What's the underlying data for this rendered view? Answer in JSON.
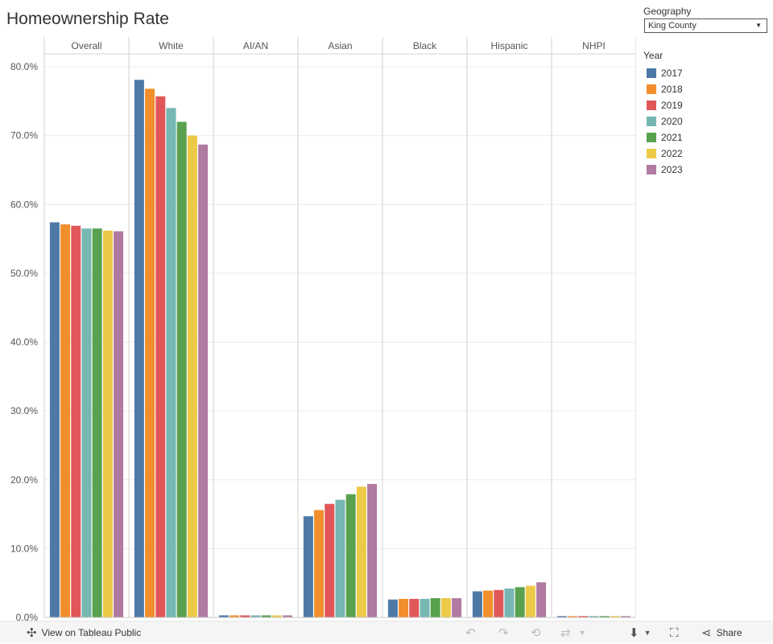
{
  "title": "Homeownership Rate",
  "filter": {
    "label": "Geography",
    "value": "King County"
  },
  "legend": {
    "title": "Year"
  },
  "toolbar": {
    "view_label": "View on Tableau Public",
    "share_label": "Share"
  },
  "colors": {
    "2017": "#4e79a7",
    "2018": "#f28e2b",
    "2019": "#e15759",
    "2020": "#76b7b2",
    "2021": "#59a14f",
    "2022": "#edc948",
    "2023": "#b07aa1"
  },
  "chart_data": {
    "type": "bar",
    "categories": [
      "Overall",
      "White",
      "AI/AN",
      "Asian",
      "Black",
      "Hispanic",
      "NHPI"
    ],
    "ylim": [
      0,
      80
    ],
    "yticks": [
      "0.0%",
      "10.0%",
      "20.0%",
      "30.0%",
      "40.0%",
      "50.0%",
      "60.0%",
      "70.0%",
      "80.0%"
    ],
    "ytick_values": [
      0,
      10,
      20,
      30,
      40,
      50,
      60,
      70,
      80
    ],
    "grid": true,
    "legend_placement": "right",
    "series": [
      {
        "name": "2017",
        "values": [
          57.4,
          78.1,
          0.3,
          14.7,
          2.6,
          3.8,
          0.2
        ]
      },
      {
        "name": "2018",
        "values": [
          57.1,
          76.8,
          0.3,
          15.6,
          2.7,
          3.9,
          0.2
        ]
      },
      {
        "name": "2019",
        "values": [
          56.9,
          75.7,
          0.3,
          16.5,
          2.7,
          4.0,
          0.2
        ]
      },
      {
        "name": "2020",
        "values": [
          56.5,
          74.0,
          0.3,
          17.1,
          2.7,
          4.2,
          0.2
        ]
      },
      {
        "name": "2021",
        "values": [
          56.5,
          72.0,
          0.3,
          17.9,
          2.8,
          4.4,
          0.2
        ]
      },
      {
        "name": "2022",
        "values": [
          56.2,
          70.0,
          0.3,
          19.0,
          2.8,
          4.6,
          0.2
        ]
      },
      {
        "name": "2023",
        "values": [
          56.1,
          68.7,
          0.3,
          19.4,
          2.8,
          5.1,
          0.2
        ]
      }
    ]
  }
}
